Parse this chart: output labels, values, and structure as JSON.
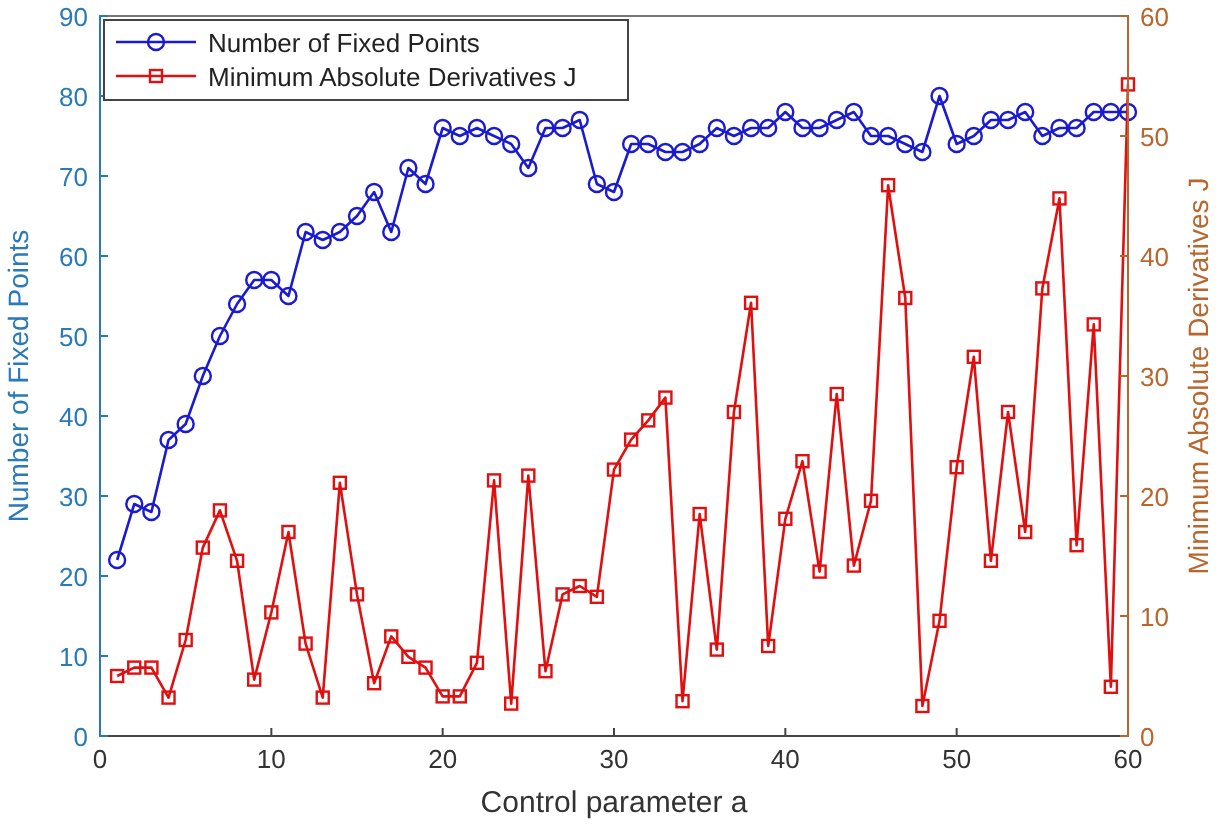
{
  "chart_data": {
    "type": "line",
    "xlabel": "Control parameter a",
    "ylabel": "Number of Fixed Points",
    "y2label": "Minimum Absolute Derivatives J",
    "x": [
      1,
      2,
      3,
      4,
      5,
      6,
      7,
      8,
      9,
      10,
      11,
      12,
      13,
      14,
      15,
      16,
      17,
      18,
      19,
      20,
      21,
      22,
      23,
      24,
      25,
      26,
      27,
      28,
      29,
      30,
      31,
      32,
      33,
      34,
      35,
      36,
      37,
      38,
      39,
      40,
      41,
      42,
      43,
      44,
      45,
      46,
      47,
      48,
      49,
      50,
      51,
      52,
      53,
      54,
      55,
      56,
      57,
      58,
      59,
      60
    ],
    "series": [
      {
        "name": "Number of Fixed Points",
        "color": "#1a1ad0",
        "marker": "circle",
        "values": [
          22,
          29,
          28,
          37,
          39,
          45,
          50,
          54,
          57,
          57,
          55,
          63,
          62,
          63,
          65,
          68,
          63,
          71,
          69,
          76,
          75,
          76,
          75,
          74,
          71,
          76,
          76,
          77,
          69,
          68,
          74,
          74,
          73,
          73,
          74,
          76,
          75,
          76,
          76,
          78,
          76,
          76,
          77,
          78,
          75,
          75,
          74,
          73,
          80,
          74,
          75,
          77,
          77,
          78,
          75,
          76,
          76,
          78,
          78,
          78
        ]
      },
      {
        "name": "Minimum Absolute Derivatives J",
        "color": "#e01010",
        "marker": "square",
        "axis": "y2",
        "values": [
          5,
          5.7,
          5.7,
          3.2,
          8,
          15.7,
          18.8,
          14.6,
          4.7,
          10.3,
          17,
          7.7,
          3.2,
          21.1,
          11.8,
          4.4,
          8.3,
          6.6,
          5.7,
          3.3,
          3.3,
          6.1,
          21.3,
          2.7,
          21.7,
          5.4,
          11.8,
          12.5,
          11.6,
          22.2,
          24.7,
          26.3,
          28.2,
          2.9,
          18.5,
          7.2,
          27,
          36.1,
          7.5,
          18.1,
          22.9,
          13.7,
          28.5,
          14.2,
          19.6,
          45.9,
          36.5,
          2.5,
          9.6,
          22.4,
          31.6,
          14.6,
          27,
          17,
          37.3,
          44.8,
          15.9,
          34.3,
          4.1,
          54.3
        ]
      }
    ],
    "xlim": [
      0,
      60
    ],
    "xticks": [
      0,
      10,
      20,
      30,
      40,
      50,
      60
    ],
    "ylim": [
      0,
      90
    ],
    "yticks": [
      0,
      10,
      20,
      30,
      40,
      50,
      60,
      70,
      80,
      90
    ],
    "y2lim": [
      0,
      60
    ],
    "y2ticks": [
      0,
      10,
      20,
      30,
      40,
      50,
      60
    ],
    "legend": "top left",
    "grid": false,
    "line_style": "solid"
  }
}
